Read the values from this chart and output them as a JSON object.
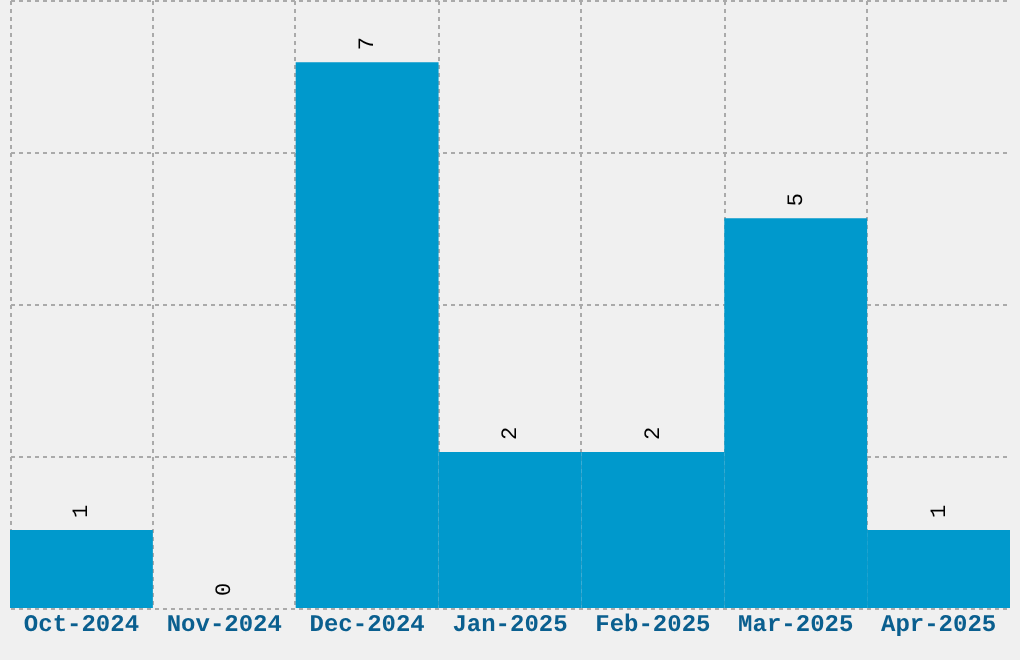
{
  "chart_data": {
    "type": "bar",
    "categories": [
      "Oct-2024",
      "Nov-2024",
      "Dec-2024",
      "Jan-2025",
      "Feb-2025",
      "Mar-2025",
      "Apr-2025"
    ],
    "values": [
      1,
      0,
      7,
      2,
      2,
      5,
      1
    ],
    "color": "#0099cc",
    "data_labels": true,
    "grid": true,
    "tick_labels": "x",
    "ylim": [
      0,
      7.8
    ],
    "yticks": [
      {
        "value": 0,
        "label": null
      },
      {
        "value": 1.95,
        "label": null
      },
      {
        "value": 3.9,
        "label": null
      },
      {
        "value": 5.85,
        "label": null
      },
      {
        "value": 7.8,
        "label": null
      }
    ]
  }
}
